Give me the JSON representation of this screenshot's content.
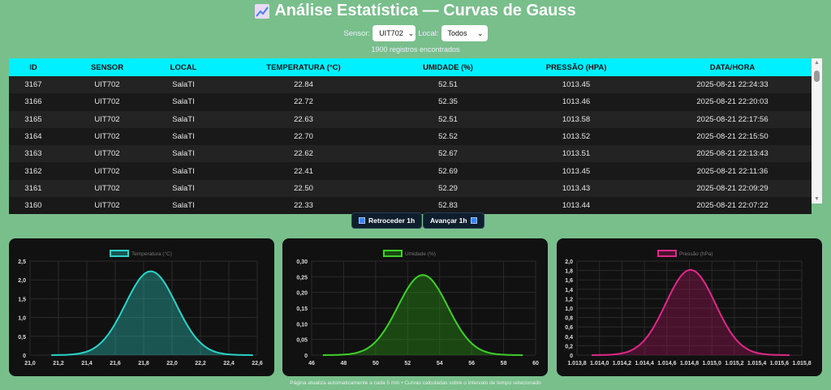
{
  "header": {
    "title": "Análise Estatística — Curvas de Gauss",
    "icon": "chart-increasing-icon"
  },
  "filters": {
    "sensor_label": "Sensor:",
    "sensor_value": "UIT702",
    "local_label": "Local:",
    "local_value": "Todos"
  },
  "count": "1900 registros encontrados",
  "table": {
    "columns": [
      "ID",
      "SENSOR",
      "LOCAL",
      "TEMPERATURA (°C)",
      "UMIDADE (%)",
      "PRESSÃO (HPA)",
      "DATA/HORA"
    ],
    "rows": [
      [
        "3167",
        "UIT702",
        "SalaTI",
        "22.84",
        "52.51",
        "1013.45",
        "2025-08-21 22:24:33"
      ],
      [
        "3166",
        "UIT702",
        "SalaTI",
        "22.72",
        "52.35",
        "1013.46",
        "2025-08-21 22:20:03"
      ],
      [
        "3165",
        "UIT702",
        "SalaTI",
        "22.63",
        "52.51",
        "1013.58",
        "2025-08-21 22:17:56"
      ],
      [
        "3164",
        "UIT702",
        "SalaTI",
        "22.70",
        "52.52",
        "1013.52",
        "2025-08-21 22:15:50"
      ],
      [
        "3163",
        "UIT702",
        "SalaTI",
        "22.62",
        "52.67",
        "1013.51",
        "2025-08-21 22:13:43"
      ],
      [
        "3162",
        "UIT702",
        "SalaTI",
        "22.41",
        "52.69",
        "1013.45",
        "2025-08-21 22:11:36"
      ],
      [
        "3161",
        "UIT702",
        "SalaTI",
        "22.50",
        "52.29",
        "1013.43",
        "2025-08-21 22:09:29"
      ],
      [
        "3160",
        "UIT702",
        "SalaTI",
        "22.33",
        "52.83",
        "1013.44",
        "2025-08-21 22:07:22"
      ]
    ]
  },
  "nav": {
    "back": "Retroceder 1h",
    "forward": "Avançar 1h"
  },
  "footer": "Página atualiza automaticamente a cada 5 min • Curvas calculadas sobre o intervalo de tempo selecionado",
  "chart_data": [
    {
      "type": "area",
      "series": [
        {
          "name": "Temperatura (°C)",
          "mean": 21.85,
          "std": 0.179,
          "x_range": [
            21.15,
            22.57
          ]
        }
      ],
      "color": "#2ad4c8",
      "fill": "rgba(42,212,200,0.35)",
      "xlim": [
        21.0,
        22.6
      ],
      "ylim": [
        0,
        2.5
      ],
      "grid": true,
      "legend": "top",
      "xticks": [
        21.0,
        21.2,
        21.4,
        21.6,
        21.8,
        22.0,
        22.2,
        22.4,
        22.6
      ],
      "xtick_labels": [
        "21,0",
        "21,2",
        "21,4",
        "21,6",
        "21,8",
        "22,0",
        "22,2",
        "22,4",
        "22,6"
      ],
      "yticks": [
        0,
        0.5,
        1.0,
        1.5,
        2.0,
        2.5
      ],
      "ytick_labels": [
        "0",
        "0,5",
        "1,0",
        "1,5",
        "2,0",
        "2,5"
      ]
    },
    {
      "type": "area",
      "series": [
        {
          "name": "Umidade (%)",
          "mean": 52.95,
          "std": 1.56,
          "x_range": [
            46.7,
            59.2
          ]
        }
      ],
      "color": "#3fd12a",
      "fill": "rgba(40,140,20,0.45)",
      "xlim": [
        46,
        60
      ],
      "ylim": [
        0,
        0.3
      ],
      "grid": true,
      "legend": "top",
      "xticks": [
        46,
        48,
        50,
        52,
        54,
        56,
        58,
        60
      ],
      "xtick_labels": [
        "46",
        "48",
        "50",
        "52",
        "54",
        "56",
        "58",
        "60"
      ],
      "yticks": [
        0,
        0.05,
        0.1,
        0.15,
        0.2,
        0.25,
        0.3
      ],
      "ytick_labels": [
        "0",
        "0,05",
        "0,10",
        "0,15",
        "0,20",
        "0,25",
        "0,30"
      ]
    },
    {
      "type": "area",
      "series": [
        {
          "name": "Pressão (hPa)",
          "mean": 1014.81,
          "std": 0.22,
          "x_range": [
            1013.93,
            1015.69
          ]
        }
      ],
      "color": "#e0288a",
      "fill": "rgba(140,20,80,0.45)",
      "xlim": [
        1013.8,
        1015.8
      ],
      "ylim": [
        0,
        2.0
      ],
      "grid": true,
      "legend": "top",
      "xticks": [
        1013.8,
        1014.0,
        1014.2,
        1014.4,
        1014.6,
        1014.8,
        1015.0,
        1015.2,
        1015.4,
        1015.6,
        1015.8
      ],
      "xtick_labels": [
        "1.013,8",
        "1.014,0",
        "1.014,2",
        "1.014,4",
        "1.014,6",
        "1.014,8",
        "1.015,0",
        "1.015,2",
        "1.015,4",
        "1.015,6",
        "1.015,8"
      ],
      "yticks": [
        0,
        0.2,
        0.4,
        0.6,
        0.8,
        1.0,
        1.2,
        1.4,
        1.6,
        1.8,
        2.0
      ],
      "ytick_labels": [
        "0",
        "0,2",
        "0,4",
        "0,6",
        "0,8",
        "1,0",
        "1,2",
        "1,4",
        "1,6",
        "1,8",
        "2,0"
      ]
    }
  ]
}
